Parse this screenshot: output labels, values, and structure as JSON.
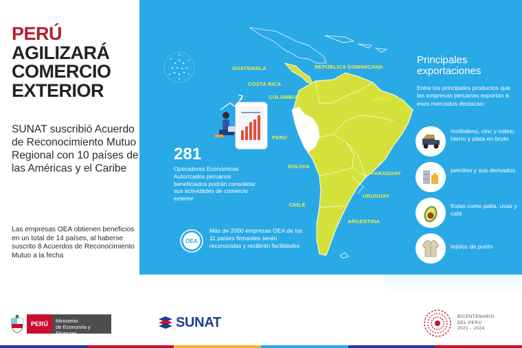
{
  "headline": {
    "line1": "PERÚ",
    "line2": "AGILIZARÁ",
    "line3": "COMERCIO",
    "line4": "EXTERIOR"
  },
  "subtitle": "SUNAT suscribió Acuerdo de Reconocimiento Mutuo Regional con 10 países de las Américas y el Caribe",
  "note": "Las empresas OEA obtienen beneficios en un total de 14 países, al haberse suscrito 8 Acuerdos de Reconocimiento Mutuo a la fecha",
  "map": {
    "countries": {
      "guatemala": "GUATEMALA",
      "costa_rica": "COSTA RICA",
      "colombia": "COLOMBIA",
      "republica_dominicana": "REPÚBLICA DOMINICANA",
      "brasil": "BRASIL",
      "peru": "PERÚ",
      "bolivia": "BOLIVIA",
      "paraguay": "PARAGUAY",
      "uruguay": "URUGUAY",
      "chile": "CHILE",
      "argentina": "ARGENTINA"
    }
  },
  "operators": {
    "count": "281",
    "text": "Operadores Económicos Autorizados peruanos beneficiados podrán consolidar sus actividades de comercio exterior"
  },
  "oea": {
    "badge": "OEA",
    "text": "Más de 2000 empresas OEA de los 11 países firmantes serán reconocidas y recibirán facilidades"
  },
  "exports": {
    "title_line1": "Principales",
    "title_line2": "exportaciones",
    "intro": "Entre los principales productos que las empresas peruanas exportan a esos mercados destacan:",
    "items": [
      {
        "icon": "mining-truck-icon",
        "label": "molibdeno, cinc y cobre; hierro y plata en bruto"
      },
      {
        "icon": "oil-barrel-icon",
        "label": "petróleo y sus derivados"
      },
      {
        "icon": "avocado-icon",
        "label": "frutas como palta, uvas y café"
      },
      {
        "icon": "jacket-icon",
        "label": "tejidos de punto"
      }
    ]
  },
  "footer": {
    "peru": "PERÚ",
    "ministerio_line1": "Ministerio",
    "ministerio_line2": "de Economía y Finanzas",
    "sunat": "SUNAT",
    "bicentenario_line1": "BICENTENARIO",
    "bicentenario_line2": "DEL PERÚ",
    "bicentenario_line3": "2021 - 2024"
  },
  "colors": {
    "blue": "#2aa9e7",
    "map_yellow": "#d4e13a",
    "peru_white": "#ffffff",
    "headline_red": "#b21f2d"
  }
}
